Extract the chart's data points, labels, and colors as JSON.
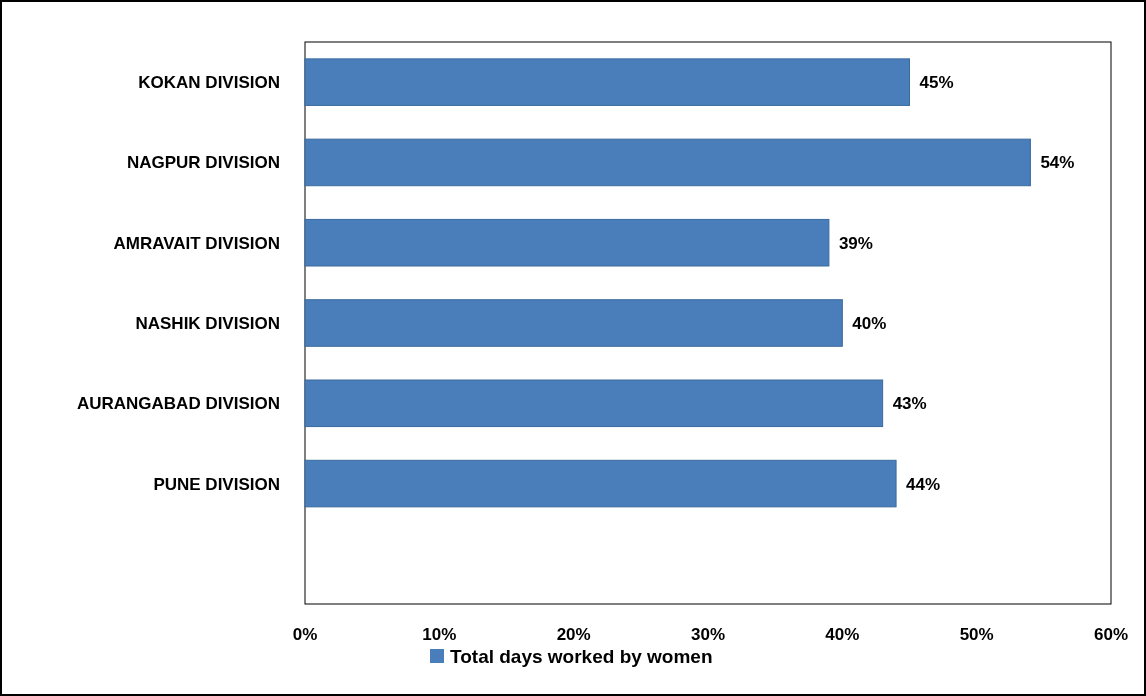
{
  "chart_data": {
    "type": "bar",
    "orientation": "horizontal",
    "categories": [
      "KOKAN DIVISION",
      "NAGPUR DIVISION",
      "AMRAVAIT DIVISION",
      "NASHIK DIVISION",
      "AURANGABAD DIVISION",
      "PUNE DIVISION",
      null
    ],
    "series": [
      {
        "name": "Total days worked by women",
        "color": "#4a7ebb",
        "values": [
          45,
          54,
          39,
          40,
          43,
          44,
          null
        ],
        "value_labels": [
          "45%",
          "54%",
          "39%",
          "40%",
          "43%",
          "44%",
          null
        ]
      }
    ],
    "xlim": [
      0,
      60
    ],
    "xticks": [
      {
        "value": 0,
        "label": "0%"
      },
      {
        "value": 10,
        "label": "10%"
      },
      {
        "value": 20,
        "label": "20%"
      },
      {
        "value": 30,
        "label": "30%"
      },
      {
        "value": 40,
        "label": "40%"
      },
      {
        "value": 50,
        "label": "50%"
      },
      {
        "value": 60,
        "label": "60%"
      }
    ],
    "grid": false,
    "legend": "bottom"
  }
}
